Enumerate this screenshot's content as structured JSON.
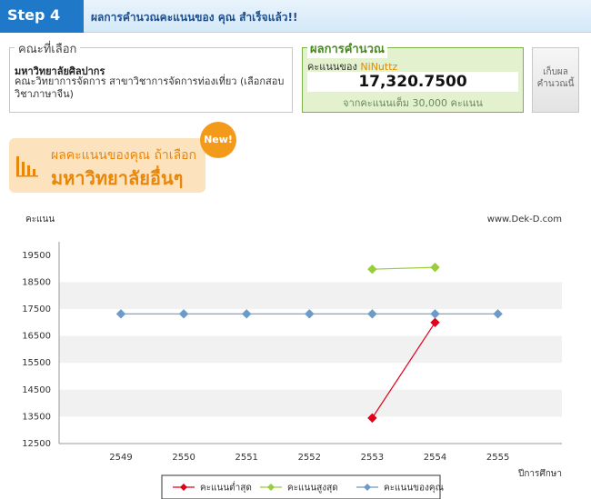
{
  "header": {
    "step": "Step 4",
    "title": "ผลการคำนวณคะแนนของ คุณ สำเร็จแล้ว!!"
  },
  "faculty": {
    "legend": "คณะที่เลือก",
    "university": "มหาวิทยาลัยศิลปากร",
    "detail": "คณะวิทยาการจัดการ สาขาวิชาการจัดการท่องเที่ยว (เลือกสอบวิชาภาษาจีน)"
  },
  "result": {
    "legend": "ผลการคำนวณ",
    "label": "คะแนนของ",
    "user": "NiNuttz",
    "score": "17,320.7500",
    "max": "จากคะแนนเต็ม 30,000 คะแนน"
  },
  "save_button": {
    "label": "เก็บผลคำนวณนี้"
  },
  "banner": {
    "line1": "ผลคะแนนของคุณ ถ้าเลือก",
    "line2": "มหาวิทยาลัยอื่นๆ",
    "badge": "New!"
  },
  "chart_data": {
    "type": "line",
    "ylabel": "คะแนน",
    "xlabel": "ปีการศึกษา",
    "watermark": "www.Dek-D.com",
    "x": [
      2549,
      2550,
      2551,
      2552,
      2553,
      2554,
      2555
    ],
    "ylim": [
      12500,
      20000
    ],
    "yticks": [
      12500,
      13500,
      14500,
      15500,
      16500,
      17500,
      18500,
      19500
    ],
    "series": [
      {
        "name": "คะแนนต่ำสุด",
        "color": "#e3001b",
        "values": [
          null,
          null,
          null,
          null,
          13450,
          17000,
          null
        ]
      },
      {
        "name": "คะแนนสูงสุด",
        "color": "#9acd3c",
        "values": [
          null,
          null,
          null,
          null,
          18980,
          19050,
          null
        ]
      },
      {
        "name": "คะแนนของคุณ",
        "color": "#6b9bc9",
        "values": [
          17320,
          17320,
          17320,
          17320,
          17320,
          17320,
          17320
        ]
      }
    ],
    "legend_position": "bottom",
    "grid": true
  }
}
